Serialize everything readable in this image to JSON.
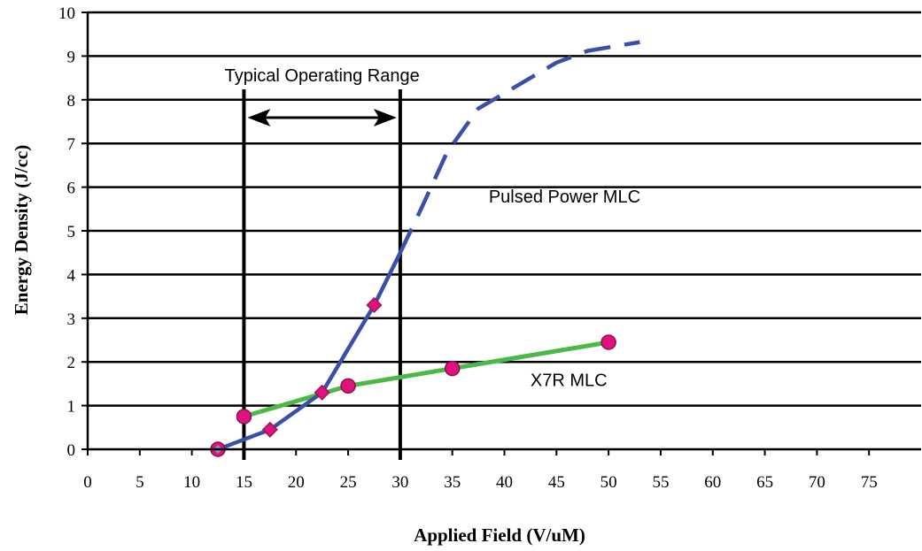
{
  "chart_data": {
    "type": "line",
    "xlabel": "Applied Field (V/uM)",
    "ylabel": "Energy Density (J/cc)",
    "xlim": [
      0,
      80
    ],
    "ylim": [
      0,
      10
    ],
    "xticks": [
      0,
      5,
      10,
      15,
      20,
      25,
      30,
      35,
      40,
      45,
      50,
      55,
      60,
      65,
      70,
      75
    ],
    "yticks": [
      0,
      1,
      2,
      3,
      4,
      5,
      6,
      7,
      8,
      9,
      10
    ],
    "grid": "horizontal",
    "series": [
      {
        "name": "Pulsed Power MLC",
        "color": "#3a4fa8",
        "marker": "diamond",
        "marker_color": "#e0127f",
        "marker_edge": "#a0154a",
        "line": [
          [
            12.5,
            0
          ],
          [
            17.5,
            0.45
          ],
          [
            22.5,
            1.3
          ],
          [
            27.5,
            3.3
          ],
          [
            30,
            4.5
          ]
        ],
        "dashed_line": [
          [
            30,
            4.5
          ],
          [
            32,
            5.5
          ],
          [
            34.5,
            6.8
          ],
          [
            37.5,
            7.8
          ],
          [
            40,
            8.15
          ],
          [
            42.5,
            8.5
          ],
          [
            45,
            8.85
          ],
          [
            48,
            9.12
          ],
          [
            53,
            9.32
          ]
        ],
        "points": [
          [
            12.5,
            0
          ],
          [
            17.5,
            0.45
          ],
          [
            22.5,
            1.3
          ],
          [
            27.5,
            3.3
          ]
        ]
      },
      {
        "name": "X7R MLC",
        "color": "#4db848",
        "marker": "circle",
        "marker_color": "#e0127f",
        "marker_edge": "#8a1048",
        "line": [
          [
            15,
            0.75
          ],
          [
            25,
            1.45
          ],
          [
            35,
            1.85
          ],
          [
            50,
            2.45
          ]
        ],
        "points": [
          [
            12.5,
            0
          ],
          [
            15,
            0.75
          ],
          [
            25,
            1.45
          ],
          [
            35,
            1.85
          ],
          [
            50,
            2.45
          ]
        ]
      }
    ],
    "annotations": [
      {
        "text": "Typical Operating Range",
        "range": [
          15,
          30
        ]
      },
      {
        "text": "Pulsed Power MLC",
        "at": [
          38.5,
          5.65
        ]
      },
      {
        "text": "X7R MLC",
        "at": [
          42.5,
          1.45
        ]
      }
    ]
  }
}
